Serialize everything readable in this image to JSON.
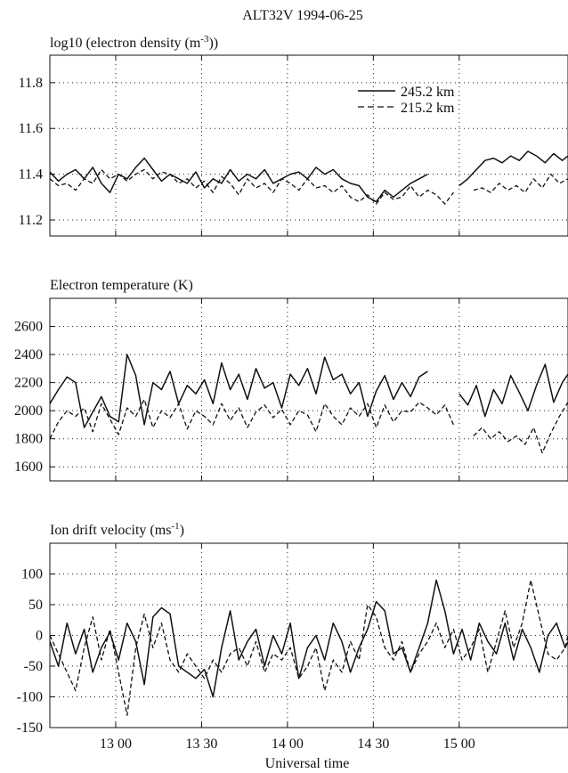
{
  "figure": {
    "title": "ALT32V 1994-06-25",
    "xlabel": "Universal time",
    "x_ticks": [
      "13 00",
      "13 30",
      "14 00",
      "14 30",
      "15 00"
    ]
  },
  "chart_data": [
    {
      "type": "line",
      "title": "log10 (electron density (m-3))",
      "ylabel": "log10 (electron density (m-3))",
      "xlim": [
        "12:37",
        "15:38"
      ],
      "ylim": [
        11.13,
        11.92
      ],
      "y_ticks": [
        11.2,
        11.4,
        11.6,
        11.8
      ],
      "grid": true,
      "legend": "top-right",
      "series": [
        {
          "name": "245.2 km",
          "style": "solid",
          "x": [
            "12:37",
            "12:40",
            "12:43",
            "12:46",
            "12:49",
            "12:52",
            "12:55",
            "12:58",
            "13:01",
            "13:04",
            "13:07",
            "13:10",
            "13:13",
            "13:16",
            "13:19",
            "13:22",
            "13:25",
            "13:28",
            "13:31",
            "13:34",
            "13:37",
            "13:40",
            "13:43",
            "13:46",
            "13:49",
            "13:52",
            "13:55",
            "13:58",
            "14:01",
            "14:04",
            "14:07",
            "14:10",
            "14:13",
            "14:16",
            "14:19",
            "14:22",
            "14:25",
            "14:28",
            "14:31",
            "14:34",
            "14:37",
            "14:40",
            "14:43",
            "14:46",
            "14:49",
            null,
            "15:00",
            "15:03",
            "15:06",
            "15:09",
            "15:12",
            "15:15",
            "15:18",
            "15:21",
            "15:24",
            "15:27",
            "15:30",
            "15:33",
            "15:36",
            "15:38"
          ],
          "y": [
            11.41,
            11.37,
            11.4,
            11.42,
            11.38,
            11.43,
            11.36,
            11.32,
            11.4,
            11.38,
            11.43,
            11.47,
            11.42,
            11.37,
            11.4,
            11.38,
            11.36,
            11.41,
            11.34,
            11.38,
            11.36,
            11.42,
            11.37,
            11.4,
            11.38,
            11.42,
            11.36,
            11.38,
            11.4,
            11.41,
            11.38,
            11.43,
            11.4,
            11.42,
            11.38,
            11.36,
            11.35,
            11.3,
            11.28,
            11.33,
            11.3,
            11.33,
            11.36,
            11.38,
            11.4,
            null,
            11.35,
            11.38,
            11.42,
            11.46,
            11.47,
            11.45,
            11.48,
            11.46,
            11.5,
            11.48,
            11.45,
            11.49,
            11.46,
            11.48
          ]
        },
        {
          "name": "215.2 km",
          "style": "dashed",
          "x": [
            "12:37",
            "12:40",
            "12:43",
            "12:46",
            "12:49",
            "12:52",
            "12:55",
            "12:58",
            "13:01",
            "13:04",
            "13:07",
            "13:10",
            "13:13",
            "13:16",
            "13:19",
            "13:22",
            "13:25",
            "13:28",
            "13:31",
            "13:34",
            "13:37",
            "13:40",
            "13:43",
            "13:46",
            "13:49",
            "13:52",
            "13:55",
            "13:58",
            "14:01",
            "14:04",
            "14:07",
            "14:10",
            "14:13",
            "14:16",
            "14:19",
            "14:22",
            "14:25",
            "14:28",
            "14:31",
            "14:34",
            "14:37",
            "14:40",
            "14:43",
            "14:46",
            "14:49",
            "14:52",
            "14:55",
            "14:58",
            null,
            "15:05",
            "15:08",
            "15:11",
            "15:14",
            "15:17",
            "15:20",
            "15:23",
            "15:26",
            "15:29",
            "15:32",
            "15:35",
            "15:38"
          ],
          "y": [
            11.38,
            11.35,
            11.36,
            11.33,
            11.38,
            11.36,
            11.42,
            11.38,
            11.4,
            11.37,
            11.4,
            11.42,
            11.38,
            11.41,
            11.4,
            11.36,
            11.38,
            11.34,
            11.37,
            11.32,
            11.39,
            11.36,
            11.31,
            11.38,
            11.34,
            11.36,
            11.32,
            11.38,
            11.36,
            11.33,
            11.38,
            11.34,
            11.35,
            11.32,
            11.35,
            11.3,
            11.28,
            11.31,
            11.27,
            11.32,
            11.29,
            11.3,
            11.35,
            11.3,
            11.33,
            11.31,
            11.27,
            11.32,
            null,
            11.33,
            11.34,
            11.32,
            11.36,
            11.33,
            11.35,
            11.32,
            11.38,
            11.34,
            11.4,
            11.36,
            11.38
          ]
        }
      ]
    },
    {
      "type": "line",
      "title": "Electron temperature (K)",
      "ylabel": "Electron temperature (K)",
      "xlim": [
        "12:37",
        "15:38"
      ],
      "ylim": [
        1500,
        2800
      ],
      "y_ticks": [
        1600,
        1800,
        2000,
        2200,
        2400,
        2600
      ],
      "grid": true,
      "series": [
        {
          "name": "245.2 km",
          "style": "solid",
          "x": [
            "12:37",
            "12:40",
            "12:43",
            "12:46",
            "12:49",
            "12:52",
            "12:55",
            "12:58",
            "13:01",
            "13:04",
            "13:07",
            "13:10",
            "13:13",
            "13:16",
            "13:19",
            "13:22",
            "13:25",
            "13:28",
            "13:31",
            "13:34",
            "13:37",
            "13:40",
            "13:43",
            "13:46",
            "13:49",
            "13:52",
            "13:55",
            "13:58",
            "14:01",
            "14:04",
            "14:07",
            "14:10",
            "14:13",
            "14:16",
            "14:19",
            "14:22",
            "14:25",
            "14:28",
            "14:31",
            "14:34",
            "14:37",
            "14:40",
            "14:43",
            "14:46",
            "14:49",
            null,
            "15:00",
            "15:03",
            "15:06",
            "15:09",
            "15:12",
            "15:15",
            "15:18",
            "15:21",
            "15:24",
            "15:27",
            "15:30",
            "15:33",
            "15:36",
            "15:38"
          ],
          "y": [
            2050,
            2150,
            2240,
            2200,
            1880,
            1990,
            2100,
            1960,
            1920,
            2400,
            2250,
            1900,
            2200,
            2150,
            2280,
            2050,
            2180,
            2120,
            2220,
            2050,
            2340,
            2150,
            2260,
            2080,
            2300,
            2160,
            2200,
            2020,
            2260,
            2180,
            2300,
            2120,
            2380,
            2220,
            2260,
            2120,
            2200,
            1960,
            2140,
            2250,
            2080,
            2200,
            2100,
            2240,
            2280,
            null,
            2120,
            2040,
            2180,
            1960,
            2150,
            2050,
            2250,
            2130,
            2000,
            2180,
            2330,
            2060,
            2200,
            2260
          ]
        },
        {
          "name": "215.2 km",
          "style": "dashed",
          "x": [
            "12:37",
            "12:40",
            "12:43",
            "12:46",
            "12:49",
            "12:52",
            "12:55",
            "12:58",
            "13:01",
            "13:04",
            "13:07",
            "13:10",
            "13:13",
            "13:16",
            "13:19",
            "13:22",
            "13:25",
            "13:28",
            "13:31",
            "13:34",
            "13:37",
            "13:40",
            "13:43",
            "13:46",
            "13:49",
            "13:52",
            "13:55",
            "13:58",
            "14:01",
            "14:04",
            "14:07",
            "14:10",
            "14:13",
            "14:16",
            "14:19",
            "14:22",
            "14:25",
            "14:28",
            "14:31",
            "14:34",
            "14:37",
            "14:40",
            "14:43",
            "14:46",
            "14:49",
            "14:52",
            "14:55",
            "14:58",
            null,
            "15:05",
            "15:08",
            "15:11",
            "15:14",
            "15:17",
            "15:20",
            "15:23",
            "15:26",
            "15:29",
            "15:32",
            "15:35",
            "15:38"
          ],
          "y": [
            1800,
            1920,
            2000,
            1960,
            2020,
            1850,
            2050,
            1940,
            1830,
            2020,
            1960,
            2080,
            1880,
            2000,
            1950,
            2050,
            1870,
            2000,
            1960,
            1900,
            2050,
            1930,
            2020,
            1880,
            1990,
            2040,
            1950,
            2010,
            1900,
            2000,
            1970,
            1850,
            2050,
            1960,
            1900,
            2020,
            1960,
            2050,
            1880,
            2040,
            1920,
            2000,
            1990,
            2060,
            2020,
            1970,
            2040,
            1900,
            null,
            1820,
            1880,
            1800,
            1850,
            1780,
            1820,
            1760,
            1880,
            1700,
            1840,
            1960,
            2060
          ]
        }
      ]
    },
    {
      "type": "line",
      "title": "Ion drift velocity (ms-1)",
      "ylabel": "Ion drift velocity (ms-1)",
      "xlim": [
        "12:37",
        "15:38"
      ],
      "ylim": [
        -150,
        150
      ],
      "y_ticks": [
        -150,
        -100,
        -50,
        0,
        50,
        100
      ],
      "grid": true,
      "series": [
        {
          "name": "245.2 km",
          "style": "solid",
          "x": [
            "12:37",
            "12:40",
            "12:43",
            "12:46",
            "12:49",
            "12:52",
            "12:55",
            "12:58",
            "13:01",
            "13:04",
            "13:07",
            "13:10",
            "13:13",
            "13:16",
            "13:19",
            "13:22",
            "13:25",
            "13:28",
            "13:31",
            "13:34",
            "13:37",
            "13:40",
            "13:43",
            "13:46",
            "13:49",
            "13:52",
            "13:55",
            "13:58",
            "14:01",
            "14:04",
            "14:07",
            "14:10",
            "14:13",
            "14:16",
            "14:19",
            "14:22",
            "14:25",
            "14:28",
            "14:31",
            "14:34",
            "14:37",
            "14:40",
            "14:43",
            "14:46",
            "14:49",
            "14:52",
            "14:55",
            "14:58",
            "15:01",
            "15:04",
            "15:07",
            "15:10",
            "15:13",
            "15:16",
            "15:19",
            "15:22",
            "15:25",
            "15:28",
            "15:31",
            "15:34",
            "15:37",
            "15:38"
          ],
          "y": [
            -10,
            -50,
            20,
            -30,
            10,
            -60,
            -20,
            5,
            -40,
            20,
            -10,
            -80,
            30,
            45,
            35,
            -50,
            -60,
            -70,
            -55,
            -100,
            -20,
            40,
            -40,
            -10,
            10,
            -50,
            0,
            -30,
            20,
            -70,
            -20,
            0,
            -40,
            20,
            -10,
            -60,
            -20,
            10,
            55,
            40,
            -30,
            -20,
            -60,
            -20,
            20,
            90,
            40,
            -30,
            10,
            -40,
            20,
            -10,
            -30,
            20,
            -40,
            10,
            -20,
            -60,
            0,
            20,
            -20,
            -10
          ]
        },
        {
          "name": "215.2 km",
          "style": "dashed",
          "x": [
            "12:37",
            "12:40",
            "12:43",
            "12:46",
            "12:49",
            "12:52",
            "12:55",
            "12:58",
            "13:01",
            "13:04",
            "13:07",
            "13:10",
            "13:13",
            "13:16",
            "13:19",
            "13:22",
            "13:25",
            "13:28",
            "13:31",
            "13:34",
            "13:37",
            "13:40",
            "13:43",
            "13:46",
            "13:49",
            "13:52",
            "13:55",
            "13:58",
            "14:01",
            "14:04",
            "14:07",
            "14:10",
            "14:13",
            "14:16",
            "14:19",
            "14:22",
            "14:25",
            "14:28",
            "14:31",
            "14:34",
            "14:37",
            "14:40",
            "14:43",
            "14:46",
            "14:49",
            "14:52",
            "14:55",
            "14:58",
            "15:01",
            "15:04",
            "15:07",
            "15:10",
            "15:13",
            "15:16",
            "15:19",
            "15:22",
            "15:25",
            "15:28",
            "15:31",
            "15:34",
            "15:37",
            "15:38"
          ],
          "y": [
            0,
            -30,
            -60,
            -90,
            -20,
            30,
            -40,
            10,
            -60,
            -130,
            -20,
            35,
            -20,
            20,
            -40,
            -60,
            -30,
            -50,
            -70,
            -40,
            -60,
            -30,
            -20,
            -50,
            -10,
            -60,
            -30,
            -40,
            -20,
            -70,
            -50,
            -20,
            -90,
            -40,
            -60,
            -10,
            -40,
            50,
            30,
            -20,
            -40,
            -10,
            -60,
            -30,
            -10,
            20,
            -20,
            10,
            -40,
            -20,
            10,
            -60,
            -10,
            40,
            -20,
            20,
            90,
            30,
            -30,
            -40,
            -20,
            0
          ]
        }
      ]
    }
  ]
}
